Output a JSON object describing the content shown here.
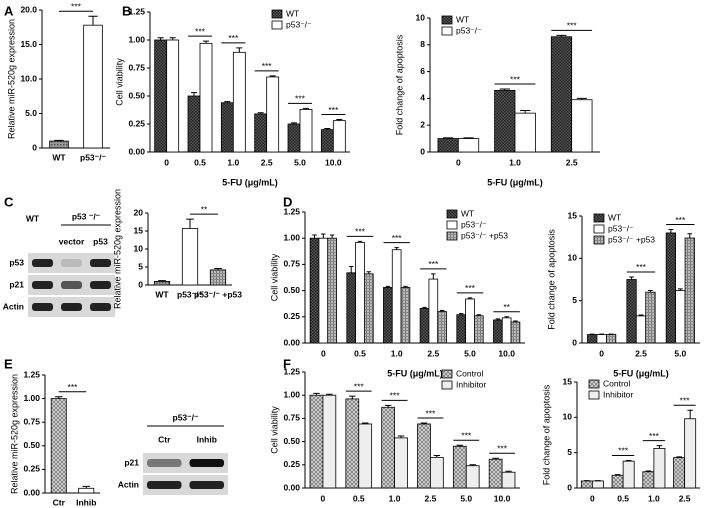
{
  "panels": [
    "A",
    "B",
    "C",
    "D",
    "E",
    "F"
  ],
  "blots": {
    "C": {
      "group": "p53 ⁻/⁻",
      "lanes": [
        "WT",
        "vector",
        "p53"
      ],
      "rows": [
        "p53",
        "p21",
        "Actin"
      ]
    },
    "E": {
      "group": "p53⁻/⁻",
      "lanes": [
        "Ctr",
        "Inhib"
      ],
      "rows": [
        "p21",
        "Actin"
      ]
    }
  },
  "chart_data": [
    {
      "type": "bar",
      "ylabel": "Relative miR-520g expression",
      "categories": [
        "WT",
        "p53⁻/⁻"
      ],
      "values": [
        1.0,
        17.8
      ],
      "errors": [
        0.1,
        1.3
      ],
      "colors": [
        "#777777",
        "#ffffff"
      ],
      "patterns": [
        "dots",
        "none"
      ],
      "significance": "***",
      "ylim": [
        0,
        20
      ],
      "yticks": [
        {
          "value": 0,
          "label": "0"
        },
        {
          "value": 5,
          "label": "5.0"
        },
        {
          "value": 10,
          "label": "10.0"
        },
        {
          "value": 15,
          "label": "15.0"
        },
        {
          "value": 20,
          "label": "20.0"
        }
      ]
    },
    {
      "type": "grouped_bar",
      "ylabel": "Cell viability",
      "xlabel": "5-FU (μg/mL)",
      "categories": [
        "0",
        "0.5",
        "1.0",
        "2.5",
        "5.0",
        "10.0"
      ],
      "series": [
        {
          "name": "WT",
          "color": "#333333",
          "pattern": "checker",
          "values": [
            1.0,
            0.5,
            0.44,
            0.34,
            0.25,
            0.2
          ],
          "errors": [
            0.02,
            0.03,
            0.01,
            0.01,
            0.01,
            0.01
          ]
        },
        {
          "name": "p53⁻/⁻",
          "color": "#ffffff",
          "pattern": "none",
          "values": [
            1.0,
            0.97,
            0.89,
            0.67,
            0.38,
            0.28
          ],
          "errors": [
            0.02,
            0.02,
            0.04,
            0.01,
            0.01,
            0.01
          ]
        }
      ],
      "significance": [
        null,
        "***",
        "***",
        "***",
        "***",
        "***"
      ],
      "legend": "upper right",
      "ylim": [
        0,
        1.25
      ],
      "yticks": [
        {
          "value": 0,
          "label": "0.00"
        },
        0.25,
        {
          "value": 0.5,
          "label": "0.50"
        },
        0.75,
        {
          "value": 1,
          "label": "1.00"
        },
        1.25
      ]
    },
    {
      "type": "grouped_bar",
      "ylabel": "Fold change of apoptosis",
      "xlabel": "5-FU (μg/mL)",
      "categories": [
        "0",
        "1.0",
        "2.5"
      ],
      "series": [
        {
          "name": "WT",
          "color": "#333333",
          "pattern": "checker",
          "values": [
            1.0,
            4.6,
            8.6
          ],
          "errors": [
            0.05,
            0.1,
            0.1
          ]
        },
        {
          "name": "p53⁻/⁻",
          "color": "#ffffff",
          "pattern": "none",
          "values": [
            1.0,
            2.9,
            3.9
          ],
          "errors": [
            0.05,
            0.2,
            0.1
          ]
        }
      ],
      "significance": [
        null,
        "***",
        "***"
      ],
      "legend": "upper left",
      "ylim": [
        0,
        10
      ],
      "yticks": [
        0,
        2,
        4,
        6,
        8,
        10
      ]
    },
    {
      "type": "bar",
      "ylabel": "Relative miR-520g expression",
      "categories": [
        "WT",
        "p53⁻/⁻",
        "p53⁻/⁻ +p53"
      ],
      "values": [
        1.0,
        15.7,
        4.2
      ],
      "errors": [
        0.2,
        2.6,
        0.4
      ],
      "colors": [
        "#777777",
        "#ffffff",
        "#999999"
      ],
      "patterns": [
        "dots",
        "none",
        "hatch"
      ],
      "significance": "**",
      "ylim": [
        0,
        20
      ],
      "yticks": [
        0,
        5,
        10,
        15,
        20
      ]
    },
    {
      "type": "grouped_bar",
      "ylabel": "Cell viability",
      "xlabel": "5-FU (μg/mL)",
      "categories": [
        "0",
        "0.5",
        "1.0",
        "2.5",
        "5.0",
        "10.0"
      ],
      "series": [
        {
          "name": "WT",
          "color": "#333333",
          "pattern": "checker",
          "values": [
            1.0,
            0.67,
            0.53,
            0.33,
            0.27,
            0.22
          ],
          "errors": [
            0.03,
            0.06,
            0.01,
            0.01,
            0.01,
            0.01
          ]
        },
        {
          "name": "p53⁻/⁻",
          "color": "#ffffff",
          "pattern": "none",
          "values": [
            1.0,
            0.96,
            0.89,
            0.61,
            0.42,
            0.24
          ],
          "errors": [
            0.04,
            0.01,
            0.02,
            0.05,
            0.01,
            0.01
          ]
        },
        {
          "name": "p53⁻/⁻ +p53",
          "color": "#999999",
          "pattern": "hatch",
          "values": [
            1.0,
            0.66,
            0.53,
            0.3,
            0.26,
            0.2
          ],
          "errors": [
            0.03,
            0.02,
            0.01,
            0.01,
            0.01,
            0.01
          ]
        }
      ],
      "significance": [
        null,
        "***",
        "***",
        "***",
        "***",
        "**"
      ],
      "legend": "upper right",
      "ylim": [
        0,
        1.25
      ],
      "yticks": [
        {
          "value": 0,
          "label": "0.00"
        },
        0.25,
        {
          "value": 0.5,
          "label": "0.50"
        },
        0.75,
        {
          "value": 1,
          "label": "1.00"
        },
        1.25
      ]
    },
    {
      "type": "grouped_bar",
      "ylabel": "Fold change of apoptosis",
      "xlabel": "5-FU (μg/mL)",
      "categories": [
        "0",
        "2.5",
        "5.0"
      ],
      "series": [
        {
          "name": "WT",
          "color": "#333333",
          "pattern": "checker",
          "values": [
            1.0,
            7.5,
            13.0
          ],
          "errors": [
            0.05,
            0.3,
            0.4
          ]
        },
        {
          "name": "p53⁻/⁻",
          "color": "#ffffff",
          "pattern": "none",
          "values": [
            1.0,
            3.2,
            6.2
          ],
          "errors": [
            0.05,
            0.1,
            0.2
          ]
        },
        {
          "name": "p53⁻/⁻ +p53",
          "color": "#999999",
          "pattern": "hatch",
          "values": [
            1.0,
            6.0,
            12.4
          ],
          "errors": [
            0.05,
            0.2,
            0.5
          ]
        }
      ],
      "significance": [
        null,
        "***",
        "***"
      ],
      "legend": "upper left",
      "ylim": [
        0,
        15
      ],
      "yticks": [
        0,
        5,
        10,
        15
      ]
    },
    {
      "type": "bar",
      "ylabel": "Relative miR-520g expression",
      "categories": [
        "Ctr",
        "Inhib"
      ],
      "values": [
        1.0,
        0.05
      ],
      "errors": [
        0.02,
        0.02
      ],
      "colors": [
        "#aaaaaa",
        "#ffffff"
      ],
      "patterns": [
        "cross",
        "none"
      ],
      "significance": "***",
      "ylim": [
        0,
        1.25
      ],
      "yticks": [
        {
          "value": 0,
          "label": "0.00"
        },
        0.25,
        {
          "value": 0.5,
          "label": "0.50"
        },
        0.75,
        {
          "value": 1,
          "label": "1.00"
        },
        1.25
      ]
    },
    {
      "type": "grouped_bar",
      "ylabel": "Cell viability",
      "xlabel": "5-FU (μg/mL)",
      "categories": [
        "0",
        "0.5",
        "1.0",
        "2.5",
        "5.0",
        "10.0"
      ],
      "series": [
        {
          "name": "Control",
          "color": "#aaaaaa",
          "pattern": "cross",
          "values": [
            1.0,
            0.96,
            0.87,
            0.69,
            0.45,
            0.31
          ],
          "errors": [
            0.02,
            0.03,
            0.02,
            0.01,
            0.01,
            0.01
          ]
        },
        {
          "name": "Inhibitor",
          "color": "#eeeeee",
          "pattern": "none",
          "values": [
            1.0,
            0.69,
            0.54,
            0.33,
            0.24,
            0.17
          ],
          "errors": [
            0.01,
            0.01,
            0.02,
            0.02,
            0.01,
            0.01
          ]
        }
      ],
      "significance": [
        null,
        "***",
        "***",
        "***",
        "***",
        "***"
      ],
      "legend": "upper right",
      "ylim": [
        0,
        1.25
      ],
      "yticks": [
        {
          "value": 0,
          "label": "0.00"
        },
        0.25,
        {
          "value": 0.5,
          "label": "0.50"
        },
        0.75,
        {
          "value": 1,
          "label": "1.00"
        },
        1.25
      ]
    },
    {
      "type": "grouped_bar",
      "ylabel": "Fold change of apoptosis",
      "xlabel": "5-FU (μg/mL)",
      "categories": [
        "0",
        "0.5",
        "1.0",
        "2.5"
      ],
      "series": [
        {
          "name": "Control",
          "color": "#aaaaaa",
          "pattern": "cross",
          "values": [
            1.0,
            1.8,
            2.3,
            4.3
          ],
          "errors": [
            0.05,
            0.1,
            0.1,
            0.1
          ]
        },
        {
          "name": "Inhibitor",
          "color": "#eeeeee",
          "pattern": "none",
          "values": [
            1.0,
            3.8,
            5.6,
            9.8
          ],
          "errors": [
            0.05,
            0.1,
            0.4,
            1.2
          ]
        }
      ],
      "significance": [
        null,
        "***",
        "***",
        "***"
      ],
      "legend": "upper left",
      "ylim": [
        0,
        15
      ],
      "yticks": [
        0,
        5,
        10,
        15
      ]
    }
  ]
}
